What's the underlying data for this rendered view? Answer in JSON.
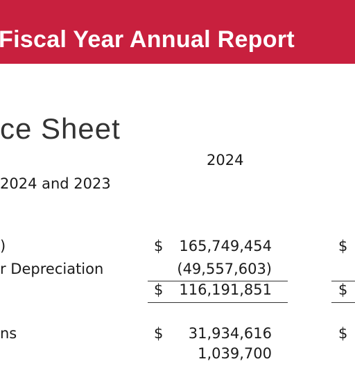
{
  "header": {
    "title": "Fiscal Year Annual Report"
  },
  "heading": "ce Sheet",
  "column_header": "2024",
  "subheading": "2024 and 2023",
  "rows": [
    {
      "label": ")",
      "currency": "$",
      "amount": "165,749,454",
      "currency2": "$"
    },
    {
      "label": "r Depreciation",
      "amount": "(49,557,603)"
    },
    {
      "currency": "$",
      "amount": "116,191,851",
      "currency2": "$"
    },
    {
      "label": "ns",
      "currency": "$",
      "amount": "31,934,616",
      "currency2": "$"
    },
    {
      "amount": "1,039,700"
    }
  ]
}
